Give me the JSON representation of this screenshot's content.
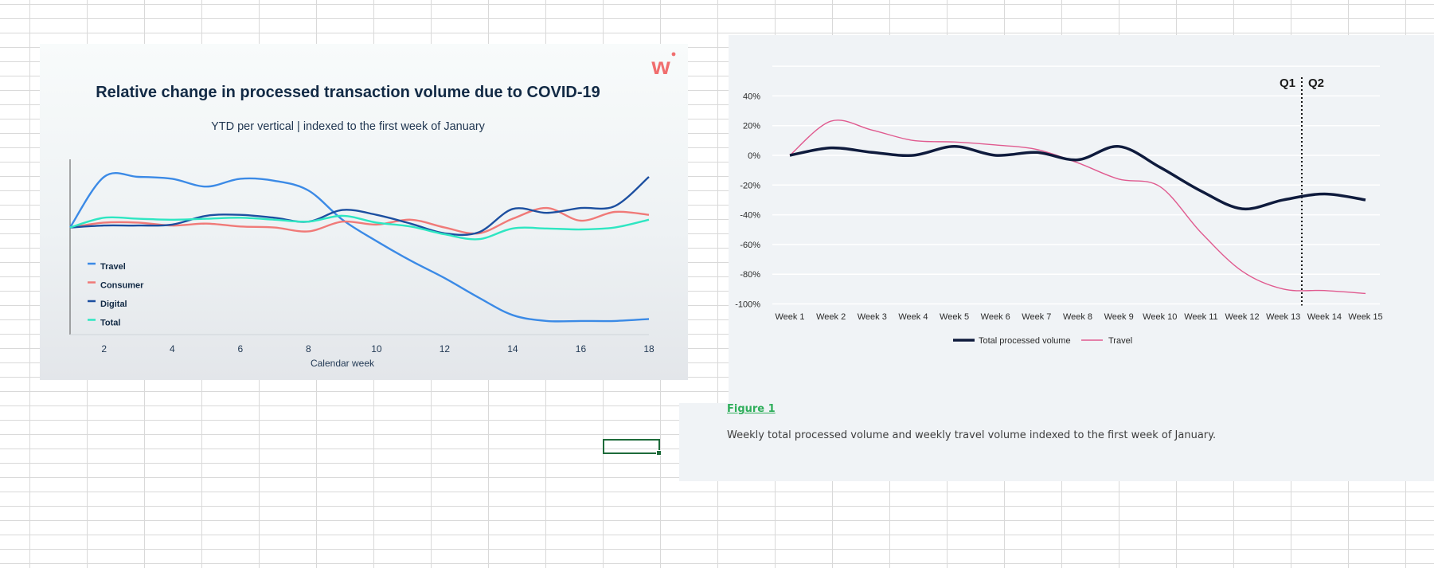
{
  "colors": {
    "travel_left": "#3b8ae6",
    "consumer_left": "#f07a78",
    "digital_left": "#1c4fa0",
    "total_left": "#2ee6c2",
    "total_right": "#0f1b3d",
    "travel_right": "#e05a8f",
    "logo": "#f06e6e",
    "figure_title": "#2fae5b"
  },
  "logo": {
    "text": "wi",
    "icon": "wi-logo-icon"
  },
  "figure": {
    "title": "Figure 1",
    "description": "Weekly total processed volume and weekly travel volume indexed to the first week of January."
  },
  "chart_data": [
    {
      "type": "line",
      "title": "Relative change in processed transaction volume due to COVID-19",
      "subtitle": "YTD per vertical | indexed to the first week of January",
      "xlabel": "Calendar week",
      "ylabel": "",
      "xlim": [
        1,
        18
      ],
      "ylim": [
        -110,
        70
      ],
      "xticks": [
        2,
        4,
        6,
        8,
        10,
        12,
        14,
        16,
        18
      ],
      "x": [
        1,
        2,
        3,
        4,
        5,
        6,
        7,
        8,
        9,
        10,
        11,
        12,
        13,
        14,
        15,
        16,
        17,
        18
      ],
      "legend": [
        "Travel",
        "Consumer",
        "Digital",
        "Total"
      ],
      "legend_position": "bottom-left",
      "series": [
        {
          "name": "Travel",
          "color_key": "travel_left",
          "values": [
            0,
            52,
            52,
            50,
            42,
            50,
            48,
            38,
            8,
            -14,
            -34,
            -52,
            -72,
            -90,
            -96,
            -96,
            -96,
            -94
          ]
        },
        {
          "name": "Consumer",
          "color_key": "consumer_left",
          "values": [
            0,
            5,
            5,
            2,
            4,
            1,
            0,
            -4,
            6,
            3,
            8,
            0,
            -6,
            9,
            20,
            7,
            16,
            13
          ]
        },
        {
          "name": "Digital",
          "color_key": "digital_left",
          "values": [
            0,
            2,
            2,
            3,
            12,
            13,
            10,
            6,
            18,
            13,
            4,
            -6,
            -5,
            19,
            15,
            20,
            22,
            52
          ]
        },
        {
          "name": "Total",
          "color_key": "total_left",
          "values": [
            0,
            10,
            9,
            8,
            9,
            10,
            8,
            6,
            12,
            5,
            1,
            -7,
            -12,
            -1,
            -1,
            -2,
            0,
            8
          ]
        }
      ]
    },
    {
      "type": "line",
      "title": "",
      "xlabel": "",
      "ylabel": "",
      "ylim": [
        -100,
        60
      ],
      "yticks": [
        "40%",
        "20%",
        "0%",
        "-20%",
        "-40%",
        "-60%",
        "-80%",
        "-100%"
      ],
      "ytick_values": [
        40,
        20,
        0,
        -20,
        -40,
        -60,
        -80,
        -100
      ],
      "categories": [
        "Week 1",
        "Week 2",
        "Week 3",
        "Week 4",
        "Week 5",
        "Week 6",
        "Week 7",
        "Week 8",
        "Week 9",
        "Week 10",
        "Week 11",
        "Week 12",
        "Week 13",
        "Week 14",
        "Week 15"
      ],
      "legend": [
        "Total processed volume",
        "Travel"
      ],
      "legend_position": "bottom",
      "annotation": {
        "divider_between": [
          "Week 13",
          "Week 14"
        ],
        "left_label": "Q1",
        "right_label": "Q2"
      },
      "series": [
        {
          "name": "Total processed volume",
          "color_key": "total_right",
          "values": [
            0,
            5,
            2,
            0,
            6,
            0,
            2,
            -3,
            6,
            -8,
            -24,
            -36,
            -30,
            -26,
            -30
          ]
        },
        {
          "name": "Travel",
          "color_key": "travel_right",
          "values": [
            0,
            23,
            17,
            10,
            9,
            7,
            4,
            -5,
            -16,
            -21,
            -52,
            -78,
            -90,
            -91,
            -93
          ]
        }
      ]
    }
  ]
}
